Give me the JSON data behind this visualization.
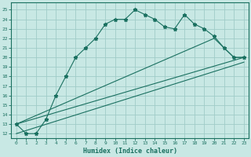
{
  "line1_x": [
    0,
    1,
    2,
    3,
    4,
    5,
    6,
    7,
    8,
    9,
    10,
    11,
    12,
    13,
    14,
    15,
    16,
    17,
    18,
    19,
    20,
    21,
    22,
    23
  ],
  "line1_y": [
    13,
    12,
    12,
    13.5,
    16,
    18,
    20,
    21,
    22,
    23.5,
    24,
    24,
    25,
    24.5,
    24,
    23.2,
    23,
    24.5,
    23.5,
    23,
    22.2,
    21,
    20,
    20
  ],
  "line2_x": [
    0,
    20,
    21,
    22,
    23
  ],
  "line2_y": [
    13,
    22,
    21,
    20,
    20
  ],
  "line3_x": [
    0,
    23
  ],
  "line3_y": [
    13,
    20
  ],
  "line4_x": [
    0,
    23
  ],
  "line4_y": [
    12,
    19.5
  ],
  "color": "#1a7060",
  "bg_color": "#c8e8e4",
  "grid_color": "#a0ccc8",
  "xlabel": "Humidex (Indice chaleur)",
  "ylim": [
    11.5,
    25.8
  ],
  "xlim": [
    -0.5,
    23.5
  ],
  "yticks": [
    12,
    13,
    14,
    15,
    16,
    17,
    18,
    19,
    20,
    21,
    22,
    23,
    24,
    25
  ],
  "xticks": [
    0,
    1,
    2,
    3,
    4,
    5,
    6,
    7,
    8,
    9,
    10,
    11,
    12,
    13,
    14,
    15,
    16,
    17,
    18,
    19,
    20,
    21,
    22,
    23
  ]
}
